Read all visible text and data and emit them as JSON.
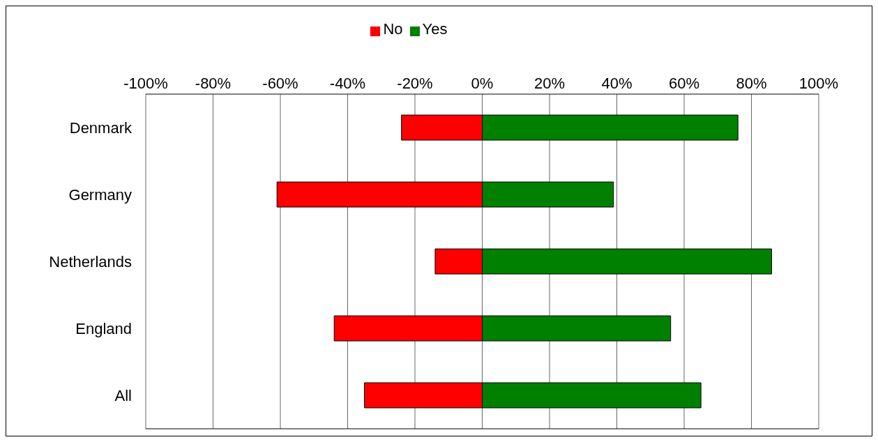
{
  "chart_data": {
    "type": "bar",
    "orientation": "horizontal",
    "stacked": true,
    "categories": [
      "Denmark",
      "Germany",
      "Netherlands",
      "England",
      "All"
    ],
    "series": [
      {
        "name": "No",
        "color": "#ff0000",
        "values": [
          -24,
          -61,
          -14,
          -44,
          -35
        ]
      },
      {
        "name": "Yes",
        "color": "#008000",
        "values": [
          76,
          39,
          86,
          56,
          65
        ]
      }
    ],
    "xlim": [
      -100,
      100
    ],
    "xticks": [
      {
        "value": -100,
        "label": "-100%"
      },
      {
        "value": -80,
        "label": "-80%"
      },
      {
        "value": -60,
        "label": "-60%"
      },
      {
        "value": -40,
        "label": "-40%"
      },
      {
        "value": -20,
        "label": "-20%"
      },
      {
        "value": 0,
        "label": "0%"
      },
      {
        "value": 20,
        "label": "20%"
      },
      {
        "value": 40,
        "label": "40%"
      },
      {
        "value": 60,
        "label": "60%"
      },
      {
        "value": 80,
        "label": "80%"
      },
      {
        "value": 100,
        "label": "100%"
      }
    ],
    "grid": "x",
    "legend": "top"
  }
}
